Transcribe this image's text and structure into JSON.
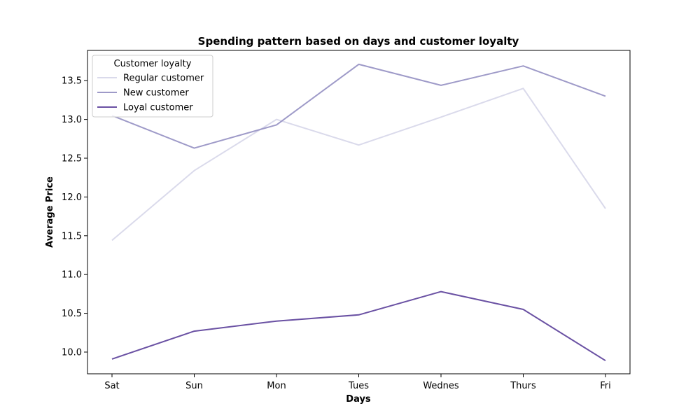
{
  "chart_data": {
    "type": "line",
    "title": "Spending pattern based on days and customer loyalty",
    "xlabel": "Days",
    "ylabel": "Average Price",
    "categories": [
      "Sat",
      "Sun",
      "Mon",
      "Tues",
      "Wednes",
      "Thurs",
      "Fri"
    ],
    "ylim": [
      9.72,
      13.89
    ],
    "yticks": [
      10.0,
      10.5,
      11.0,
      11.5,
      12.0,
      12.5,
      13.0,
      13.5
    ],
    "ytick_labels": [
      "10.0",
      "10.5",
      "11.0",
      "11.5",
      "12.0",
      "12.5",
      "13.0",
      "13.5"
    ],
    "grid": false,
    "legend": {
      "title": "Customer loyalty",
      "position": "top-left"
    },
    "series": [
      {
        "name": "Regular customer",
        "color": "#dadaeb",
        "values": [
          11.44,
          12.34,
          13.0,
          12.67,
          13.03,
          13.4,
          11.85
        ]
      },
      {
        "name": "New customer",
        "color": "#9e9ac8",
        "values": [
          13.05,
          12.63,
          12.93,
          13.71,
          13.44,
          13.69,
          13.3
        ]
      },
      {
        "name": "Loyal customer",
        "color": "#6a51a3",
        "values": [
          9.91,
          10.27,
          10.4,
          10.48,
          10.78,
          10.55,
          9.89
        ]
      }
    ]
  }
}
